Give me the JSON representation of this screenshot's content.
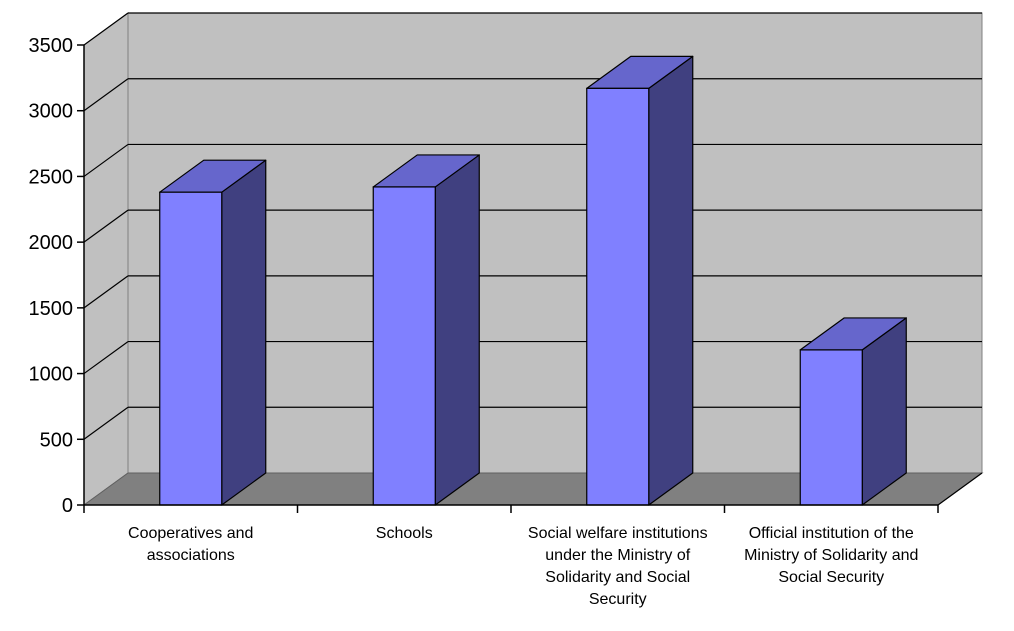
{
  "chart_data": {
    "type": "bar",
    "categories": [
      [
        "Cooperatives and",
        "associations"
      ],
      [
        "Schools"
      ],
      [
        "Social welfare institutions",
        "under the Ministry of",
        "Solidarity and Social",
        "Security"
      ],
      [
        "Official institution of the",
        "Ministry of Solidarity and",
        "Social Security"
      ]
    ],
    "values": [
      2380,
      2420,
      3170,
      1180
    ],
    "ylim": [
      0,
      3500
    ],
    "y_ticks": [
      "0",
      "500",
      "1000",
      "1500",
      "2000",
      "2500",
      "3000",
      "3500"
    ],
    "grid": true,
    "legend": "none",
    "title": "",
    "xlabel": "",
    "ylabel": "",
    "style": {
      "wall_color": "#c0c0c0",
      "floor_color": "#808080",
      "bar_front_color": "#8080ff",
      "bar_top_color": "#6666cc",
      "bar_side_color": "#404080",
      "gridline_color": "#000000"
    }
  }
}
